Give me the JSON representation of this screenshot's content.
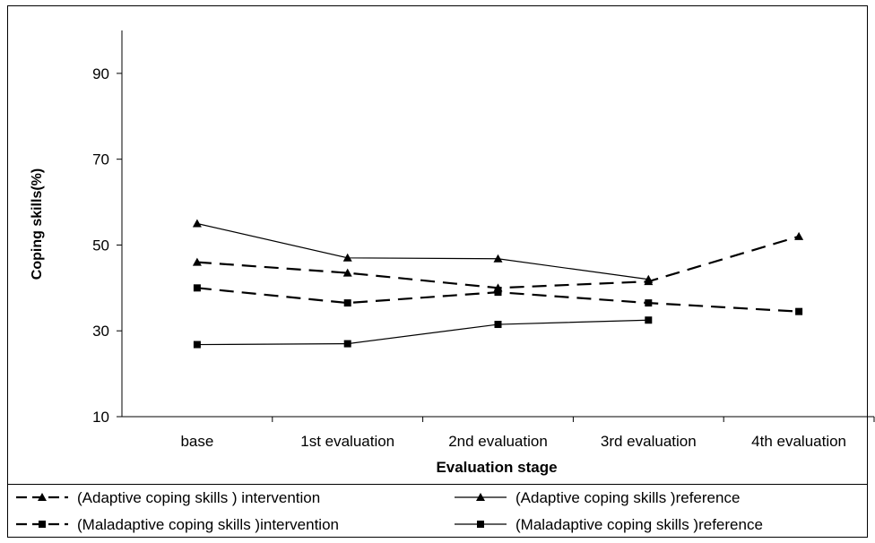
{
  "chart_data": {
    "type": "line",
    "title": "",
    "xlabel": "Evaluation stage",
    "ylabel": "Coping skills(%)",
    "categories": [
      "base",
      "1st evaluation",
      "2nd evaluation",
      "3rd evaluation",
      "4th evaluation"
    ],
    "y_ticks": [
      10,
      30,
      50,
      70,
      90
    ],
    "ylim": [
      10,
      100
    ],
    "grid": false,
    "legend_position": "bottom",
    "series": [
      {
        "name": "(Adaptive coping skills ) intervention",
        "values": [
          46,
          43.5,
          40,
          41.5,
          52
        ],
        "line_style": "dashed",
        "marker": "triangle",
        "color": "#000000"
      },
      {
        "name": "(Adaptive coping skills )reference",
        "values": [
          55,
          47,
          46.8,
          42,
          null
        ],
        "line_style": "solid",
        "marker": "triangle",
        "color": "#000000"
      },
      {
        "name": "(Maladaptive coping skills )intervention",
        "values": [
          40,
          36.5,
          39,
          36.5,
          34.5
        ],
        "line_style": "dashed",
        "marker": "square",
        "color": "#000000"
      },
      {
        "name": "(Maladaptive coping skills )reference",
        "values": [
          26.8,
          27,
          31.5,
          32.5,
          null
        ],
        "line_style": "solid",
        "marker": "square",
        "color": "#000000"
      }
    ]
  }
}
